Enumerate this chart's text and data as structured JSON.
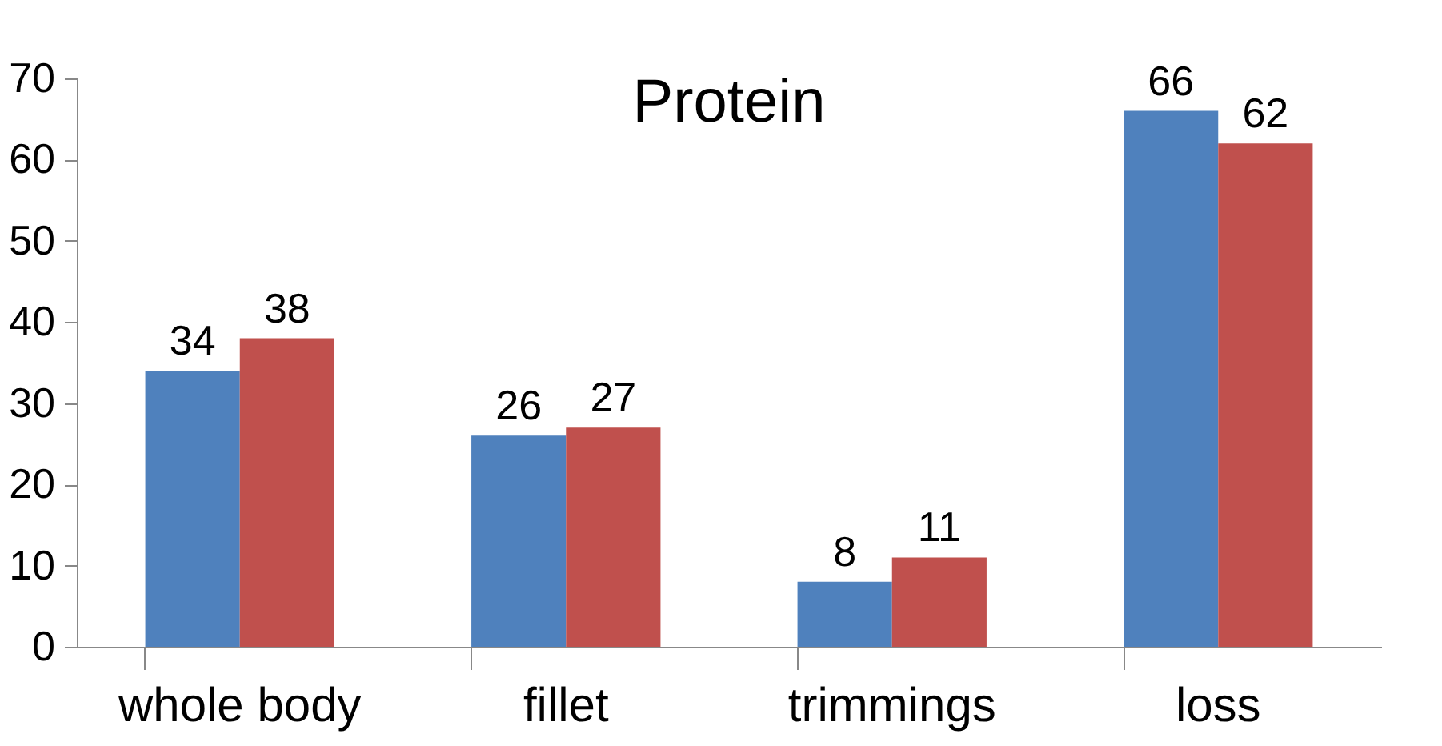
{
  "chart_data": {
    "type": "bar",
    "title": "Protein",
    "categories": [
      "whole body",
      "fillet",
      "trimmings",
      "loss"
    ],
    "series": [
      {
        "color": "#4f81bd",
        "values": [
          34,
          26,
          8,
          66
        ]
      },
      {
        "color": "#c0504d",
        "values": [
          38,
          27,
          11,
          62
        ]
      }
    ],
    "ylim": [
      0,
      70
    ],
    "yticks": [
      0,
      10,
      20,
      30,
      40,
      50,
      60,
      70
    ],
    "data_labels": true
  }
}
